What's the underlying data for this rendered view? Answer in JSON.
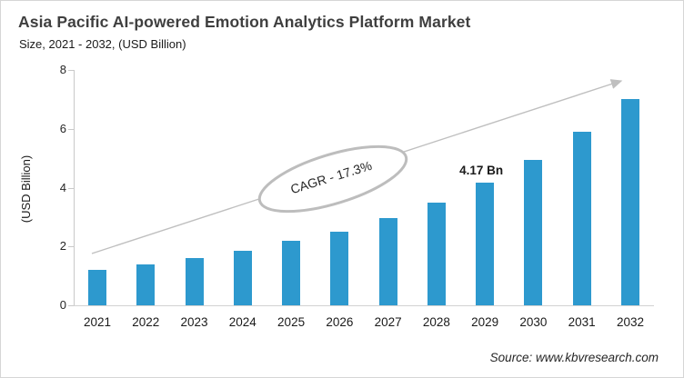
{
  "header": {
    "title": "Asia Pacific AI-powered Emotion Analytics Platform Market",
    "subtitle": "Size, 2021 - 2032, (USD Billion)"
  },
  "chart_data": {
    "type": "bar",
    "title": "Asia Pacific AI-powered Emotion Analytics Platform Market",
    "subtitle": "Size, 2021 - 2032, (USD Billion)",
    "categories": [
      "2021",
      "2022",
      "2023",
      "2024",
      "2025",
      "2026",
      "2027",
      "2028",
      "2029",
      "2030",
      "2031",
      "2032"
    ],
    "values": [
      1.2,
      1.4,
      1.6,
      1.85,
      2.2,
      2.5,
      2.95,
      3.5,
      4.17,
      4.95,
      5.9,
      7.0
    ],
    "xlabel": "",
    "ylabel": "(USD Billion)",
    "ylim": [
      0,
      8
    ],
    "yticks": [
      0,
      2,
      4,
      6,
      8
    ],
    "grid": false,
    "legend": false,
    "bar_color": "#2d99ce",
    "axis_color": "#c9c9c9",
    "arrow_color": "#bfbfbf",
    "annotations": [
      {
        "type": "data-label",
        "category": "2029",
        "text": "4.17 Bn"
      },
      {
        "type": "callout-ellipse",
        "text": "CAGR - 17.3%"
      },
      {
        "type": "trend-arrow",
        "direction": "up-right"
      }
    ]
  },
  "annotations": {
    "cagr_label": "CAGR - 17.3%",
    "value_label": "4.17 Bn"
  },
  "footer": {
    "source": "Source: www.kbvresearch.com"
  }
}
